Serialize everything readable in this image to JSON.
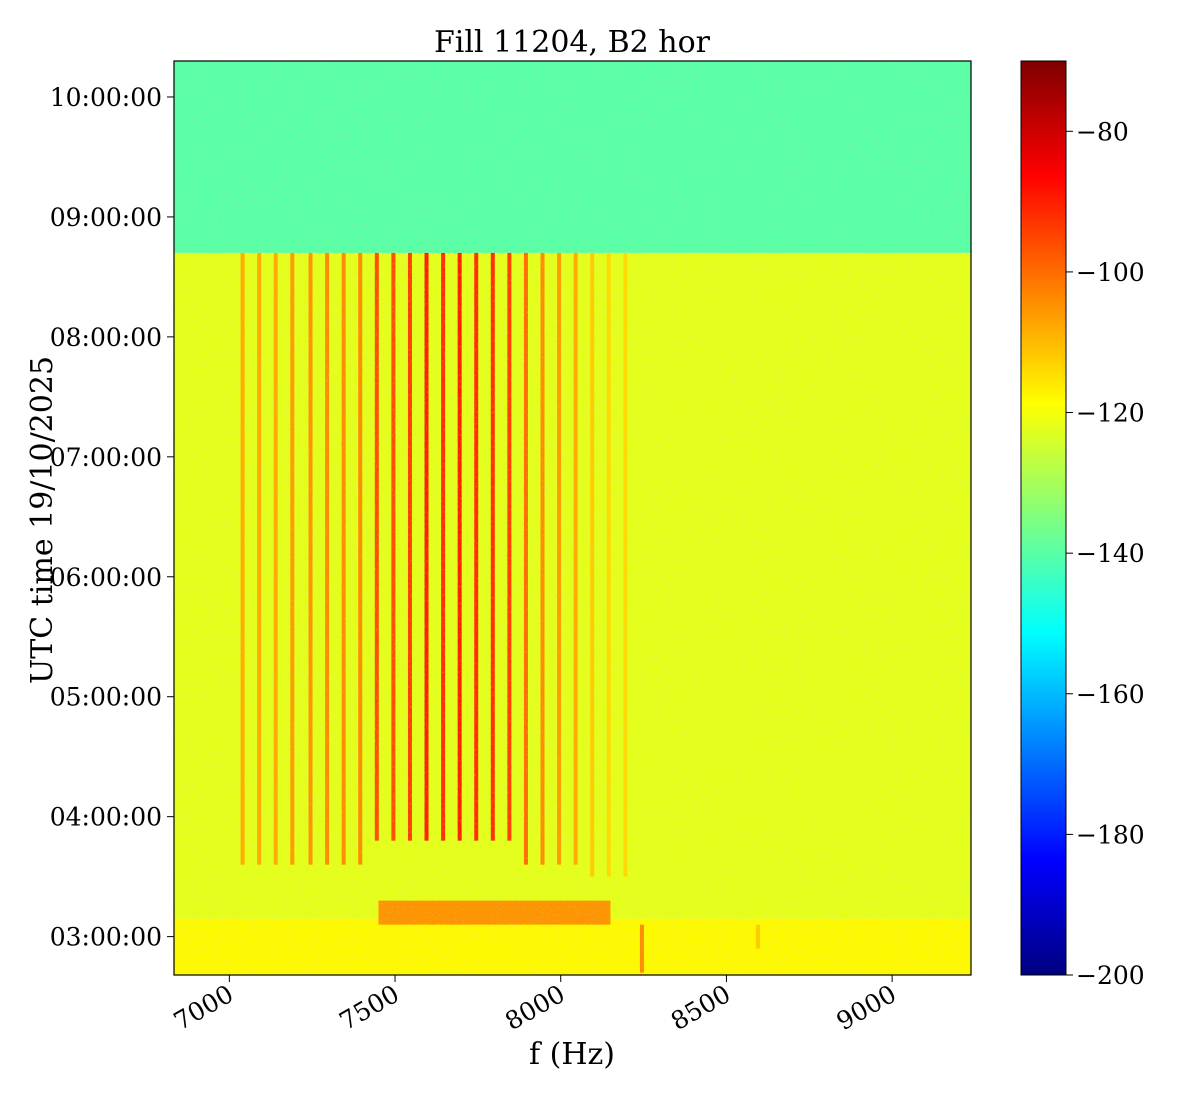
{
  "chart_data": {
    "type": "heatmap",
    "title": "Fill 11204, B2 hor",
    "xlabel": "f (Hz)",
    "ylabel": "UTC time 19/10/2025",
    "xlim": [
      6833,
      9238
    ],
    "ylim_hours": [
      2.68,
      10.3
    ],
    "xticks": [
      {
        "value": 7000,
        "label": "7000"
      },
      {
        "value": 7500,
        "label": "7500"
      },
      {
        "value": 8000,
        "label": "8000"
      },
      {
        "value": 8500,
        "label": "8500"
      },
      {
        "value": 9000,
        "label": "9000"
      }
    ],
    "yticks": [
      {
        "value": 3,
        "label": "03:00:00"
      },
      {
        "value": 4,
        "label": "04:00:00"
      },
      {
        "value": 5,
        "label": "05:00:00"
      },
      {
        "value": 6,
        "label": "06:00:00"
      },
      {
        "value": 7,
        "label": "07:00:00"
      },
      {
        "value": 8,
        "label": "08:00:00"
      },
      {
        "value": 9,
        "label": "09:00:00"
      },
      {
        "value": 10,
        "label": "10:00:00"
      }
    ],
    "colorbar": {
      "colormap": "jet",
      "range": [
        -200,
        -70
      ],
      "ticks": [
        {
          "value": -80,
          "label": "−80"
        },
        {
          "value": -100,
          "label": "−100"
        },
        {
          "value": -120,
          "label": "−120"
        },
        {
          "value": -140,
          "label": "−140"
        },
        {
          "value": -160,
          "label": "−160"
        },
        {
          "value": -180,
          "label": "−180"
        },
        {
          "value": -200,
          "label": "−200"
        }
      ]
    },
    "regions": [
      {
        "t_start": 8.7,
        "t_end": 10.3,
        "level_db": -140,
        "description": "quiet"
      },
      {
        "t_start": 3.15,
        "t_end": 8.7,
        "level_db": -122
      },
      {
        "t_start": 2.68,
        "t_end": 3.15,
        "level_db": -118
      },
      {
        "t_start": 3.1,
        "t_end": 3.3,
        "f_start": 7450,
        "f_end": 8150,
        "level_db": -105
      }
    ],
    "lines": [
      {
        "f": 7040,
        "t_start": 3.6,
        "t_end": 8.7,
        "level_db": -108
      },
      {
        "f": 7090,
        "t_start": 3.6,
        "t_end": 8.7,
        "level_db": -108
      },
      {
        "f": 7140,
        "t_start": 3.6,
        "t_end": 8.7,
        "level_db": -108
      },
      {
        "f": 7190,
        "t_start": 3.6,
        "t_end": 8.7,
        "level_db": -106
      },
      {
        "f": 7245,
        "t_start": 3.6,
        "t_end": 8.7,
        "level_db": -105
      },
      {
        "f": 7295,
        "t_start": 3.6,
        "t_end": 8.7,
        "level_db": -104
      },
      {
        "f": 7345,
        "t_start": 3.6,
        "t_end": 8.7,
        "level_db": -104
      },
      {
        "f": 7395,
        "t_start": 3.6,
        "t_end": 8.7,
        "level_db": -104
      },
      {
        "f": 7445,
        "t_start": 3.8,
        "t_end": 8.7,
        "level_db": -96
      },
      {
        "f": 7495,
        "t_start": 3.8,
        "t_end": 8.7,
        "level_db": -96
      },
      {
        "f": 7545,
        "t_start": 3.8,
        "t_end": 8.7,
        "level_db": -94
      },
      {
        "f": 7595,
        "t_start": 3.8,
        "t_end": 8.7,
        "level_db": -90
      },
      {
        "f": 7645,
        "t_start": 3.8,
        "t_end": 8.7,
        "level_db": -92
      },
      {
        "f": 7695,
        "t_start": 3.8,
        "t_end": 8.7,
        "level_db": -90
      },
      {
        "f": 7745,
        "t_start": 3.8,
        "t_end": 8.7,
        "level_db": -92
      },
      {
        "f": 7795,
        "t_start": 3.8,
        "t_end": 8.7,
        "level_db": -92
      },
      {
        "f": 7845,
        "t_start": 3.8,
        "t_end": 8.7,
        "level_db": -94
      },
      {
        "f": 7895,
        "t_start": 3.6,
        "t_end": 8.7,
        "level_db": -100
      },
      {
        "f": 7945,
        "t_start": 3.6,
        "t_end": 8.7,
        "level_db": -104
      },
      {
        "f": 7995,
        "t_start": 3.6,
        "t_end": 8.7,
        "level_db": -106
      },
      {
        "f": 8045,
        "t_start": 3.6,
        "t_end": 8.7,
        "level_db": -108
      },
      {
        "f": 8095,
        "t_start": 3.5,
        "t_end": 8.7,
        "level_db": -112
      },
      {
        "f": 8145,
        "t_start": 3.5,
        "t_end": 8.7,
        "level_db": -114
      },
      {
        "f": 8195,
        "t_start": 3.5,
        "t_end": 8.7,
        "level_db": -114
      },
      {
        "f": 8245,
        "t_start": 2.7,
        "t_end": 3.1,
        "level_db": -104
      },
      {
        "f": 8595,
        "t_start": 2.9,
        "t_end": 3.1,
        "level_db": -112
      }
    ]
  }
}
